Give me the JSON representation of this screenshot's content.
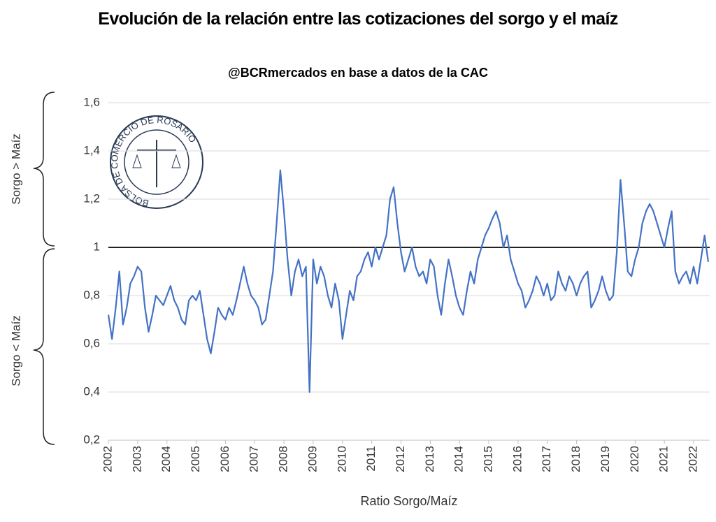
{
  "chart_data": {
    "type": "line",
    "title": "Evolución de la relación entre las cotizaciones del sorgo y el maíz",
    "subtitle": "@BCRmercados en base a datos de la CAC",
    "x_label": "Ratio Sorgo/Maíz",
    "annotations": [
      "Sorgo > Maíz",
      "Sorgo < Maíz"
    ],
    "logo_text": "BOLSA DE COMERCIO DE ROSARIO",
    "reference_line": 1,
    "xlim": [
      2002,
      2022.55
    ],
    "xticks": [
      2002,
      2003,
      2004,
      2005,
      2006,
      2007,
      2008,
      2009,
      2010,
      2011,
      2012,
      2013,
      2014,
      2015,
      2016,
      2017,
      2018,
      2019,
      2020,
      2021,
      2022
    ],
    "ylim": [
      0.2,
      1.6
    ],
    "yticks": [
      {
        "value": 0.2,
        "label": "0,2"
      },
      {
        "value": 0.4,
        "label": "0,4"
      },
      {
        "value": 0.6,
        "label": "0,6"
      },
      {
        "value": 0.8,
        "label": "0,8"
      },
      1,
      {
        "value": 1.2,
        "label": "1,2"
      },
      {
        "value": 1.4,
        "label": "1,4"
      },
      {
        "value": 1.6,
        "label": "1,6"
      }
    ],
    "grid": true,
    "x": [
      2002,
      2002.125,
      2002.25,
      2002.375,
      2002.5,
      2002.625,
      2002.75,
      2002.875,
      2003,
      2003.125,
      2003.25,
      2003.375,
      2003.5,
      2003.625,
      2003.75,
      2003.875,
      2004,
      2004.125,
      2004.25,
      2004.375,
      2004.5,
      2004.625,
      2004.75,
      2004.875,
      2005,
      2005.125,
      2005.25,
      2005.375,
      2005.5,
      2005.625,
      2005.75,
      2005.875,
      2006,
      2006.125,
      2006.25,
      2006.375,
      2006.5,
      2006.625,
      2006.75,
      2006.875,
      2007,
      2007.125,
      2007.25,
      2007.375,
      2007.5,
      2007.625,
      2007.75,
      2007.875,
      2008,
      2008.125,
      2008.25,
      2008.375,
      2008.5,
      2008.625,
      2008.75,
      2008.875,
      2009,
      2009.125,
      2009.25,
      2009.375,
      2009.5,
      2009.625,
      2009.75,
      2009.875,
      2010,
      2010.125,
      2010.25,
      2010.375,
      2010.5,
      2010.625,
      2010.75,
      2010.875,
      2011,
      2011.125,
      2011.25,
      2011.375,
      2011.5,
      2011.625,
      2011.75,
      2011.875,
      2012,
      2012.125,
      2012.25,
      2012.375,
      2012.5,
      2012.625,
      2012.75,
      2012.875,
      2013,
      2013.125,
      2013.25,
      2013.375,
      2013.5,
      2013.625,
      2013.75,
      2013.875,
      2014,
      2014.125,
      2014.25,
      2014.375,
      2014.5,
      2014.625,
      2014.75,
      2014.875,
      2015,
      2015.125,
      2015.25,
      2015.375,
      2015.5,
      2015.625,
      2015.75,
      2015.875,
      2016,
      2016.125,
      2016.25,
      2016.375,
      2016.5,
      2016.625,
      2016.75,
      2016.875,
      2017,
      2017.125,
      2017.25,
      2017.375,
      2017.5,
      2017.625,
      2017.75,
      2017.875,
      2018,
      2018.125,
      2018.25,
      2018.375,
      2018.5,
      2018.625,
      2018.75,
      2018.875,
      2019,
      2019.125,
      2019.25,
      2019.375,
      2019.5,
      2019.625,
      2019.75,
      2019.875,
      2020,
      2020.125,
      2020.25,
      2020.375,
      2020.5,
      2020.625,
      2020.75,
      2020.875,
      2021,
      2021.125,
      2021.25,
      2021.375,
      2021.5,
      2021.625,
      2021.75,
      2021.875,
      2022,
      2022.125,
      2022.25,
      2022.375,
      2022.5
    ],
    "series": [
      {
        "name": "Ratio Sorgo/Maíz",
        "color": "#4472c4",
        "values": [
          0.72,
          0.62,
          0.75,
          0.9,
          0.68,
          0.75,
          0.85,
          0.88,
          0.92,
          0.9,
          0.75,
          0.65,
          0.72,
          0.8,
          0.78,
          0.76,
          0.8,
          0.84,
          0.78,
          0.75,
          0.7,
          0.68,
          0.78,
          0.8,
          0.78,
          0.82,
          0.72,
          0.62,
          0.56,
          0.65,
          0.75,
          0.72,
          0.7,
          0.75,
          0.72,
          0.78,
          0.85,
          0.92,
          0.85,
          0.8,
          0.78,
          0.75,
          0.68,
          0.7,
          0.8,
          0.9,
          1.1,
          1.32,
          1.15,
          0.95,
          0.8,
          0.9,
          0.95,
          0.88,
          0.92,
          0.4,
          0.95,
          0.85,
          0.92,
          0.88,
          0.8,
          0.75,
          0.85,
          0.78,
          0.62,
          0.72,
          0.82,
          0.78,
          0.88,
          0.9,
          0.95,
          0.98,
          0.92,
          1.0,
          0.95,
          1.0,
          1.05,
          1.2,
          1.25,
          1.1,
          0.98,
          0.9,
          0.95,
          1.0,
          0.92,
          0.88,
          0.9,
          0.85,
          0.95,
          0.92,
          0.8,
          0.72,
          0.85,
          0.95,
          0.88,
          0.8,
          0.75,
          0.72,
          0.82,
          0.9,
          0.85,
          0.95,
          1.0,
          1.05,
          1.08,
          1.12,
          1.15,
          1.1,
          1.0,
          1.05,
          0.95,
          0.9,
          0.85,
          0.82,
          0.75,
          0.78,
          0.82,
          0.88,
          0.85,
          0.8,
          0.85,
          0.78,
          0.8,
          0.9,
          0.85,
          0.82,
          0.88,
          0.85,
          0.8,
          0.85,
          0.88,
          0.9,
          0.75,
          0.78,
          0.82,
          0.88,
          0.82,
          0.78,
          0.8,
          0.98,
          1.28,
          1.1,
          0.9,
          0.88,
          0.95,
          1.0,
          1.1,
          1.15,
          1.18,
          1.15,
          1.1,
          1.05,
          1.0,
          1.08,
          1.15,
          0.9,
          0.85,
          0.88,
          0.9,
          0.85,
          0.92,
          0.85,
          0.95,
          1.05,
          0.94
        ]
      }
    ]
  }
}
